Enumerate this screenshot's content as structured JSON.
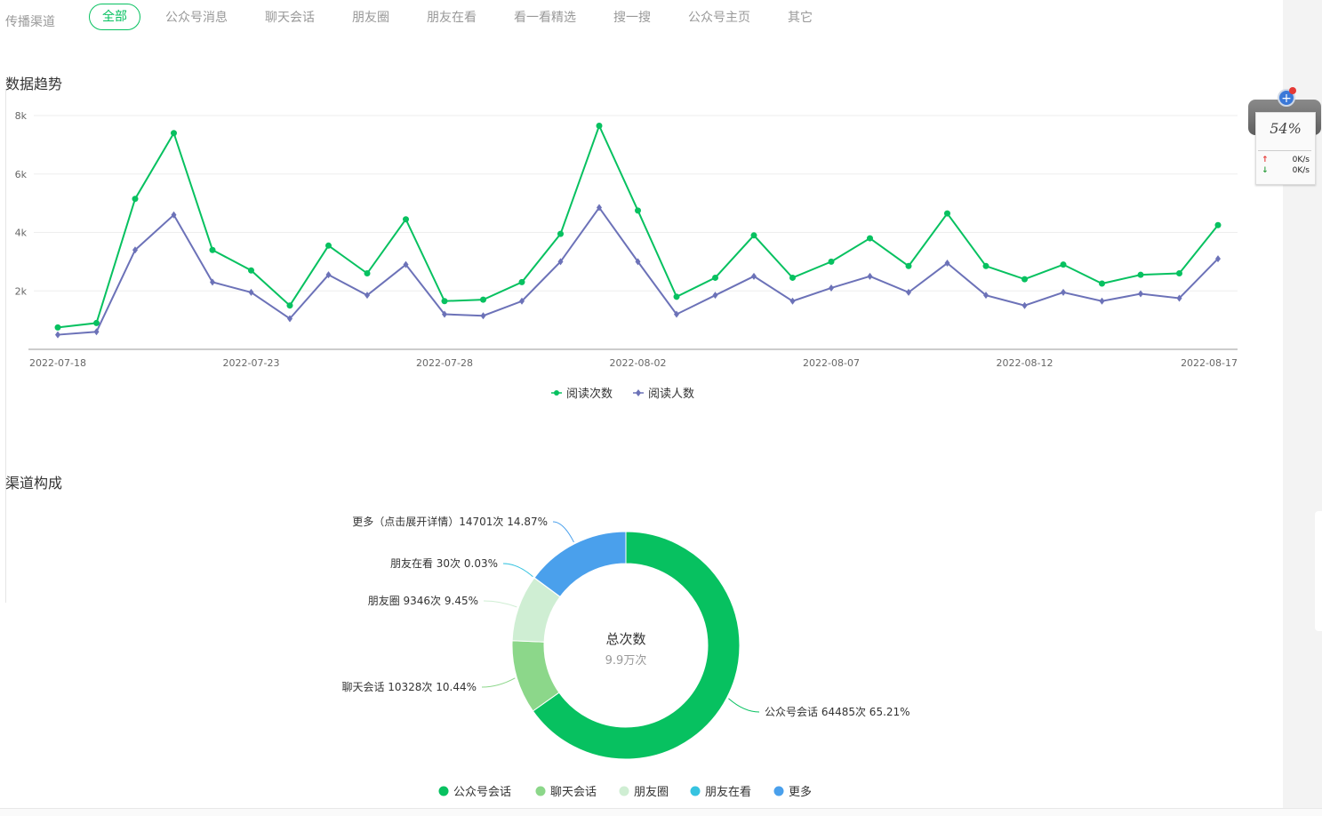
{
  "channel_bar": {
    "label": "传播渠道",
    "tabs": [
      {
        "label": "全部",
        "active": true
      },
      {
        "label": "公众号消息",
        "active": false
      },
      {
        "label": "聊天会话",
        "active": false
      },
      {
        "label": "朋友圈",
        "active": false
      },
      {
        "label": "朋友在看",
        "active": false
      },
      {
        "label": "看一看精选",
        "active": false
      },
      {
        "label": "搜一搜",
        "active": false
      },
      {
        "label": "公众号主页",
        "active": false
      },
      {
        "label": "其它",
        "active": false
      }
    ]
  },
  "trend_section": {
    "title": "数据趋势"
  },
  "composition_section": {
    "title": "渠道构成"
  },
  "widget": {
    "percent": "54%",
    "up_speed": "0K/s",
    "down_speed": "0K/s"
  },
  "chart_data": [
    {
      "type": "line",
      "x_tick_labels": [
        "2022-07-18",
        "2022-07-23",
        "2022-07-28",
        "2022-08-02",
        "2022-08-07",
        "2022-08-12",
        "2022-08-17"
      ],
      "y_tick_labels": [
        "2k",
        "4k",
        "6k",
        "8k"
      ],
      "ylim": [
        0,
        8000
      ],
      "grid": true,
      "legend_position": "bottom",
      "colors": {
        "阅读次数": "#07c160",
        "阅读人数": "#6c72b8"
      },
      "series": [
        {
          "name": "阅读次数",
          "marker": "circle",
          "values": [
            750,
            900,
            5150,
            7400,
            3400,
            2700,
            1500,
            3550,
            2600,
            4450,
            1650,
            1700,
            2300,
            3950,
            7650,
            4750,
            1800,
            2450,
            3900,
            2450,
            3000,
            3800,
            2850,
            4650,
            2850,
            2400,
            2900,
            2250,
            2550,
            2600,
            4250
          ]
        },
        {
          "name": "阅读人数",
          "marker": "diamond",
          "values": [
            500,
            600,
            3400,
            4600,
            2300,
            1950,
            1050,
            2550,
            1850,
            2900,
            1200,
            1150,
            1650,
            3000,
            4850,
            3000,
            1200,
            1850,
            2500,
            1650,
            2100,
            2500,
            1950,
            2950,
            1850,
            1500,
            1950,
            1650,
            1900,
            1750,
            3100
          ]
        }
      ]
    },
    {
      "type": "pie",
      "donut": true,
      "center_title": "总次数",
      "center_value": "9.9万次",
      "legend_position": "bottom",
      "slices": [
        {
          "name": "公众号会话",
          "count": 64485,
          "percent": 65.21,
          "label": "公众号会话 64485次 65.21%",
          "color": "#07c160"
        },
        {
          "name": "聊天会话",
          "count": 10328,
          "percent": 10.44,
          "label": "聊天会话 10328次 10.44%",
          "color": "#8cd78a"
        },
        {
          "name": "朋友圈",
          "count": 9346,
          "percent": 9.45,
          "label": "朋友圈 9346次 9.45%",
          "color": "#cfeed3"
        },
        {
          "name": "朋友在看",
          "count": 30,
          "percent": 0.03,
          "label": "朋友在看 30次 0.03%",
          "color": "#36c3e0"
        },
        {
          "name": "更多",
          "count": 14701,
          "percent": 14.87,
          "label": "更多（点击展开详情）14701次 14.87%",
          "color": "#4aa0ec"
        }
      ]
    }
  ]
}
